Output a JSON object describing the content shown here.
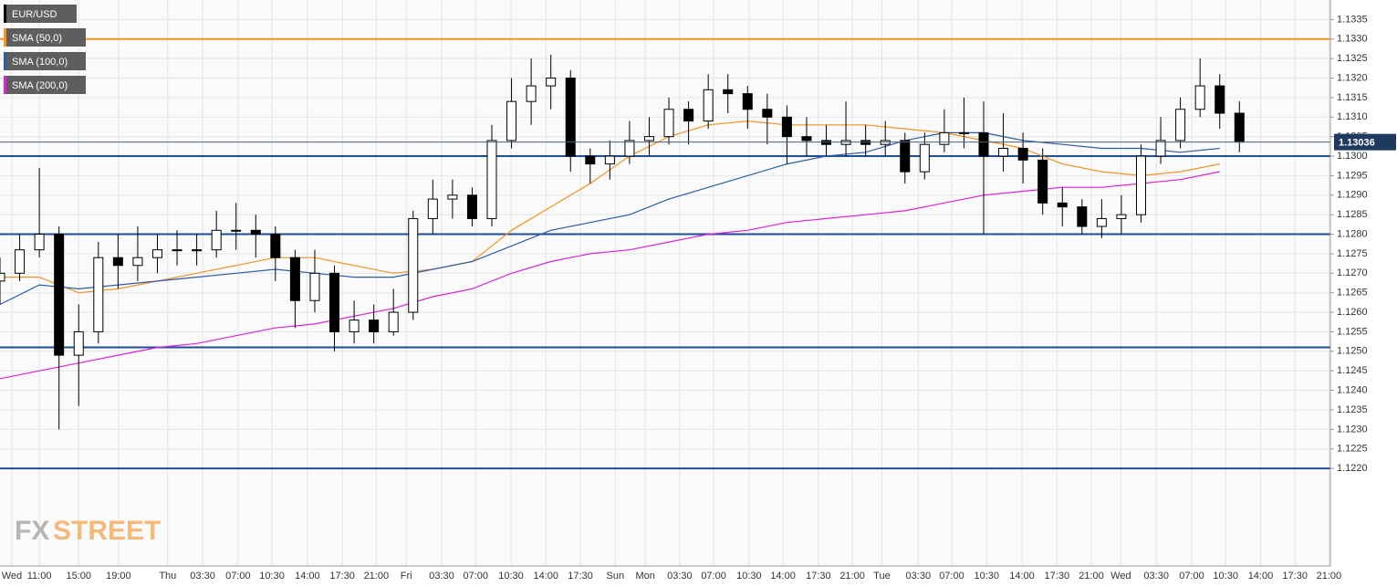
{
  "chart_data": {
    "type": "candlestick",
    "xlim": [
      0,
      270.5
    ],
    "ylim": [
      1.1195,
      1.134
    ],
    "grid": true,
    "xticks": [
      {
        "value": 2.4,
        "label": "Wed"
      },
      {
        "value": 8.0,
        "label": "11:00"
      },
      {
        "value": 16.0,
        "label": "15:00"
      },
      {
        "value": 24.1,
        "label": "19:00"
      },
      {
        "value": 34.1,
        "label": "Thu"
      },
      {
        "value": 41.2,
        "label": "03:30"
      },
      {
        "value": 48.4,
        "label": "07:00"
      },
      {
        "value": 55.3,
        "label": "10:30"
      },
      {
        "value": 62.5,
        "label": "14:00"
      },
      {
        "value": 69.6,
        "label": "17:30"
      },
      {
        "value": 76.5,
        "label": "21:00"
      },
      {
        "value": 82.6,
        "label": "Fri"
      },
      {
        "value": 89.8,
        "label": "03:30"
      },
      {
        "value": 96.7,
        "label": "07:00"
      },
      {
        "value": 103.9,
        "label": "10:30"
      },
      {
        "value": 111.0,
        "label": "14:00"
      },
      {
        "value": 118.0,
        "label": "17:30"
      },
      {
        "value": 125.1,
        "label": "Sun"
      },
      {
        "value": 131.2,
        "label": "Mon"
      },
      {
        "value": 138.2,
        "label": "03:30"
      },
      {
        "value": 145.1,
        "label": "07:00"
      },
      {
        "value": 152.3,
        "label": "10:30"
      },
      {
        "value": 159.2,
        "label": "14:00"
      },
      {
        "value": 166.4,
        "label": "17:30"
      },
      {
        "value": 173.3,
        "label": "21:00"
      },
      {
        "value": 179.3,
        "label": "Tue"
      },
      {
        "value": 186.7,
        "label": "03:30"
      },
      {
        "value": 193.5,
        "label": "07:00"
      },
      {
        "value": 200.6,
        "label": "10:30"
      },
      {
        "value": 207.8,
        "label": "14:00"
      },
      {
        "value": 214.9,
        "label": "17:30"
      },
      {
        "value": 221.9,
        "label": "21:00"
      },
      {
        "value": 227.9,
        "label": "Wed"
      },
      {
        "value": 235.1,
        "label": "03:30"
      },
      {
        "value": 242.3,
        "label": "07:00"
      },
      {
        "value": 249.2,
        "label": "10:30"
      },
      {
        "value": 256.3,
        "label": "14:00"
      },
      {
        "value": 263.3,
        "label": "17:30"
      },
      {
        "value": 270.2,
        "label": "21:00"
      }
    ],
    "yticks": [
      {
        "value": 1.122,
        "label": "1.1220"
      },
      1.1225,
      {
        "value": 1.123,
        "label": "1.1230"
      },
      1.1235,
      {
        "value": 1.124,
        "label": "1.1240"
      },
      1.1245,
      {
        "value": 1.125,
        "label": "1.1250"
      },
      1.1255,
      {
        "value": 1.126,
        "label": "1.1260"
      },
      1.1265,
      {
        "value": 1.127,
        "label": "1.1270"
      },
      1.1275,
      {
        "value": 1.128,
        "label": "1.1280"
      },
      1.1285,
      {
        "value": 1.129,
        "label": "1.1290"
      },
      1.1295,
      {
        "value": 1.13,
        "label": "1.1300"
      },
      1.1305,
      {
        "value": 1.131,
        "label": "1.1310"
      },
      1.1315,
      {
        "value": 1.132,
        "label": "1.1320"
      },
      1.1325,
      {
        "value": 1.133,
        "label": "1.1330"
      },
      1.1335
    ],
    "candles": {
      "name": "EUR/USD",
      "color": "#000000",
      "x": [
        0,
        4,
        8,
        12,
        16,
        20,
        24,
        28,
        32,
        36,
        40,
        44,
        48,
        52,
        56,
        60,
        64,
        68,
        72,
        76,
        80,
        84,
        88,
        92,
        96,
        100,
        104,
        108,
        112,
        116,
        120,
        124,
        128,
        132,
        136,
        140,
        144,
        148,
        152,
        156,
        160,
        164,
        168,
        172,
        176,
        180,
        184,
        188,
        192,
        196,
        200,
        204,
        208,
        212,
        216,
        220,
        224,
        228,
        232,
        236,
        240,
        244,
        248,
        252
      ],
      "open": [
        1.1268,
        1.127,
        1.1276,
        1.128,
        1.1249,
        1.1255,
        1.1274,
        1.1272,
        1.1274,
        1.1276,
        1.1276,
        1.1276,
        1.1281,
        1.1281,
        1.128,
        1.1274,
        1.1263,
        1.127,
        1.1255,
        1.1258,
        1.1255,
        1.126,
        1.1284,
        1.1289,
        1.129,
        1.1284,
        1.1304,
        1.1314,
        1.1318,
        1.132,
        1.13,
        1.1298,
        1.13,
        1.1304,
        1.1305,
        1.1312,
        1.1309,
        1.1317,
        1.1316,
        1.1312,
        1.131,
        1.1305,
        1.1304,
        1.1303,
        1.1304,
        1.1303,
        1.1304,
        1.1296,
        1.1303,
        1.1306,
        1.1306,
        1.13,
        1.1302,
        1.1299,
        1.1288,
        1.1287,
        1.1282,
        1.1284,
        1.1285,
        1.13,
        1.1304,
        1.1312,
        1.1318,
        1.1311
      ],
      "high": [
        1.1274,
        1.128,
        1.1297,
        1.1282,
        1.1262,
        1.1278,
        1.128,
        1.1282,
        1.128,
        1.1281,
        1.128,
        1.1286,
        1.1288,
        1.1285,
        1.1282,
        1.1276,
        1.1276,
        1.1272,
        1.1263,
        1.1262,
        1.1266,
        1.1286,
        1.1294,
        1.1294,
        1.1292,
        1.1308,
        1.132,
        1.1325,
        1.1326,
        1.1322,
        1.1302,
        1.1304,
        1.1309,
        1.131,
        1.1315,
        1.1314,
        1.1321,
        1.1321,
        1.1318,
        1.1316,
        1.1313,
        1.131,
        1.1308,
        1.1314,
        1.1308,
        1.1309,
        1.1306,
        1.1306,
        1.1312,
        1.1315,
        1.1314,
        1.1311,
        1.1306,
        1.1302,
        1.1292,
        1.1289,
        1.1289,
        1.129,
        1.1303,
        1.131,
        1.1315,
        1.1325,
        1.1321,
        1.1314
      ],
      "low": [
        1.1262,
        1.1268,
        1.1274,
        1.123,
        1.1236,
        1.1252,
        1.1266,
        1.1268,
        1.127,
        1.1272,
        1.1272,
        1.1274,
        1.1276,
        1.1274,
        1.1268,
        1.1256,
        1.126,
        1.125,
        1.1252,
        1.1252,
        1.1254,
        1.1258,
        1.128,
        1.1284,
        1.1282,
        1.1282,
        1.1302,
        1.1308,
        1.1312,
        1.1296,
        1.1293,
        1.1294,
        1.1298,
        1.13,
        1.1303,
        1.1303,
        1.1307,
        1.1311,
        1.1307,
        1.1303,
        1.1298,
        1.13,
        1.13,
        1.13,
        1.13,
        1.13,
        1.1293,
        1.1294,
        1.1301,
        1.1302,
        1.128,
        1.1296,
        1.1293,
        1.1285,
        1.1282,
        1.128,
        1.1279,
        1.128,
        1.1283,
        1.1298,
        1.1302,
        1.131,
        1.1307,
        1.1301
      ],
      "close": [
        1.127,
        1.1276,
        1.128,
        1.1249,
        1.1255,
        1.1274,
        1.1272,
        1.1274,
        1.1276,
        1.1276,
        1.1276,
        1.1281,
        1.1281,
        1.128,
        1.1274,
        1.1263,
        1.127,
        1.1255,
        1.1258,
        1.1255,
        1.126,
        1.1284,
        1.1289,
        1.129,
        1.1284,
        1.1304,
        1.1314,
        1.1318,
        1.132,
        1.13,
        1.1298,
        1.13,
        1.1304,
        1.1305,
        1.1312,
        1.1309,
        1.1317,
        1.1316,
        1.1312,
        1.131,
        1.1305,
        1.1304,
        1.1303,
        1.1304,
        1.1303,
        1.1304,
        1.1296,
        1.1303,
        1.1306,
        1.1306,
        1.13,
        1.1302,
        1.1299,
        1.1288,
        1.1287,
        1.1282,
        1.1284,
        1.1285,
        1.13,
        1.1304,
        1.1312,
        1.1318,
        1.1311,
        1.13036
      ]
    },
    "sma_x": [
      0,
      8,
      16,
      24,
      32,
      40,
      48,
      56,
      64,
      72,
      80,
      88,
      96,
      104,
      112,
      120,
      128,
      136,
      144,
      152,
      160,
      168,
      176,
      184,
      192,
      200,
      208,
      216,
      224,
      232,
      240,
      248
    ],
    "series": [
      {
        "name": "SMA (50,0)",
        "color": "#f7931e",
        "values": [
          1.1269,
          1.1269,
          1.1265,
          1.1266,
          1.1268,
          1.127,
          1.1272,
          1.1274,
          1.1274,
          1.1272,
          1.127,
          1.1271,
          1.1273,
          1.1281,
          1.1287,
          1.1293,
          1.13,
          1.1305,
          1.1308,
          1.1309,
          1.1308,
          1.1308,
          1.1308,
          1.1307,
          1.1306,
          1.1304,
          1.1302,
          1.1298,
          1.1296,
          1.1295,
          1.1296,
          1.1298
        ]
      },
      {
        "name": "SMA (100,0)",
        "color": "#2c5da8",
        "values": [
          1.1262,
          1.1267,
          1.1266,
          1.1267,
          1.1268,
          1.1269,
          1.127,
          1.1271,
          1.127,
          1.1269,
          1.1269,
          1.1271,
          1.1273,
          1.1277,
          1.1281,
          1.1283,
          1.1285,
          1.1289,
          1.1292,
          1.1295,
          1.1298,
          1.13,
          1.1301,
          1.1304,
          1.1306,
          1.1306,
          1.1304,
          1.1303,
          1.1302,
          1.1302,
          1.1301,
          1.1302
        ]
      },
      {
        "name": "SMA (200,0)",
        "color": "#e020e0",
        "values": [
          1.1243,
          1.1245,
          1.1247,
          1.1249,
          1.1251,
          1.1252,
          1.1254,
          1.1256,
          1.1257,
          1.1259,
          1.1261,
          1.1264,
          1.1266,
          1.127,
          1.1273,
          1.1275,
          1.1276,
          1.1278,
          1.128,
          1.1281,
          1.1283,
          1.1284,
          1.1285,
          1.1286,
          1.1288,
          1.129,
          1.1291,
          1.1292,
          1.1292,
          1.1293,
          1.1294,
          1.1296
        ]
      }
    ],
    "hlines": [
      {
        "value": 1.133,
        "color": "#f7931e"
      },
      {
        "value": 1.13,
        "color": "#1f4e99"
      },
      {
        "value": 1.128,
        "color": "#1f4e99"
      },
      {
        "value": 1.1251,
        "color": "#1f4e99"
      },
      {
        "value": 1.122,
        "color": "#1f4e99"
      }
    ],
    "last_price": 1.13036,
    "watermark": [
      "FX",
      "STREET"
    ]
  }
}
